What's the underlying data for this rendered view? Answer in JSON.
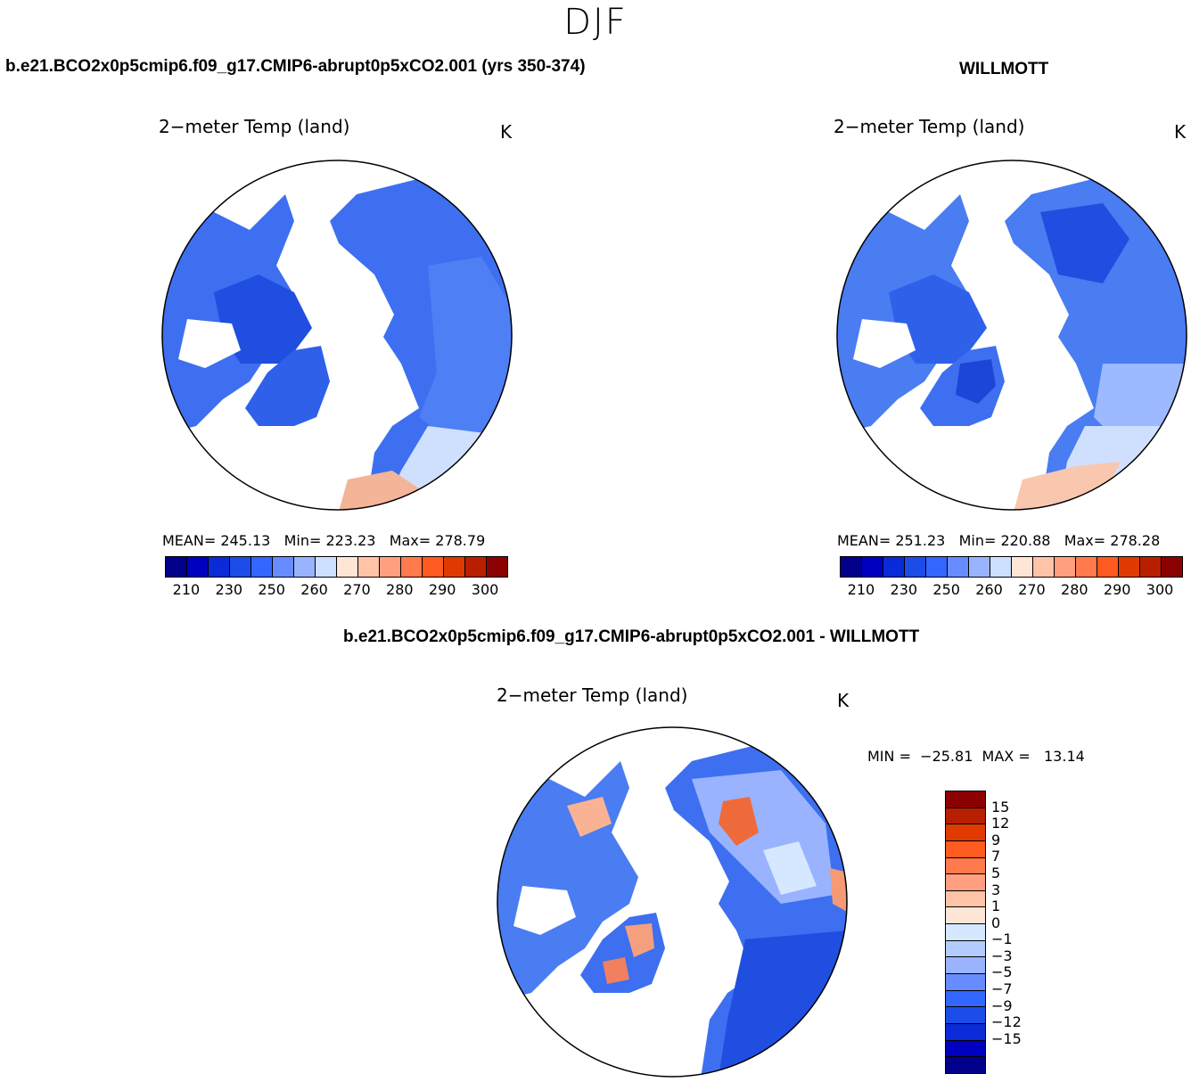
{
  "season": "DJF",
  "panels": [
    {
      "case": "b.e21.BCO2x0p5cmip6.f09_g17.CMIP6-abrupt0p5xCO2.001 (yrs 350-374)",
      "title": "2−meter Temp (land)",
      "unit": "K",
      "stats": "MEAN= 245.13   Min= 223.23   Max= 278.79"
    },
    {
      "case": "WILLMOTT",
      "title": "2−meter Temp (land)",
      "unit": "K",
      "stats": "MEAN= 251.23   Min= 220.88   Max= 278.28"
    },
    {
      "case": "b.e21.BCO2x0p5cmip6.f09_g17.CMIP6-abrupt0p5xCO2.001 - WILLMOTT",
      "title": "2−meter Temp (land)",
      "unit": "K",
      "stats": "MIN =  −25.81  MAX =   13.14"
    }
  ],
  "abs_colorbar": {
    "colors": [
      "#00008b",
      "#0000c0",
      "#0a2bd7",
      "#1c4de8",
      "#3366ff",
      "#668cff",
      "#99b3ff",
      "#cce0ff",
      "#ffe5d6",
      "#ffc3a8",
      "#ff9f7f",
      "#ff7a4d",
      "#ff5a1f",
      "#e03a00",
      "#b81f00",
      "#8b0000"
    ],
    "ticks": [
      "210",
      "230",
      "250",
      "260",
      "270",
      "280",
      "290",
      "300"
    ]
  },
  "diff_colorbar": {
    "colors": [
      "#8b0000",
      "#b81f00",
      "#e03a00",
      "#ff5a1f",
      "#ff7a4d",
      "#ff9f7f",
      "#ffc3a8",
      "#ffe5d6",
      "#d6e8ff",
      "#b3ccff",
      "#99b3ff",
      "#668cff",
      "#3366ff",
      "#1c4de8",
      "#0a2bd7",
      "#0000c0",
      "#00008b"
    ],
    "ticks": [
      "15",
      "12",
      "9",
      "7",
      "5",
      "3",
      "1",
      "0",
      "−1",
      "−3",
      "−5",
      "−7",
      "−9",
      "−12",
      "−15"
    ]
  }
}
